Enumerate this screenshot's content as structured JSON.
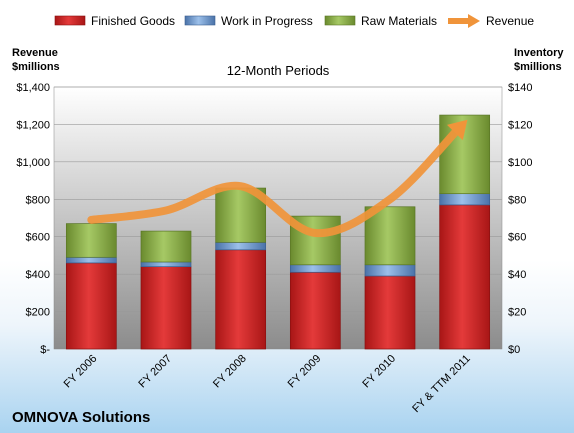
{
  "chart_data": {
    "type": "bar",
    "stacked": true,
    "subtitle": "12-Month Periods",
    "company": "OMNOVA Solutions",
    "categories": [
      "FY 2006",
      "FY 2007",
      "FY 2008",
      "FY 2009",
      "FY 2010",
      "FY & TTM 2011"
    ],
    "series": [
      {
        "name": "Finished Goods",
        "axis": "right",
        "color": "#d92b2b",
        "values": [
          46,
          44,
          53,
          41,
          39,
          77
        ]
      },
      {
        "name": "Work in Progress",
        "axis": "right",
        "color": "#6e9fd6",
        "values": [
          3,
          2.5,
          4,
          4,
          6,
          6
        ]
      },
      {
        "name": "Raw Materials",
        "axis": "right",
        "color": "#8fb64a",
        "values": [
          18,
          16.5,
          29,
          26,
          31,
          42
        ]
      }
    ],
    "line": {
      "name": "Revenue",
      "axis": "left",
      "color": "#f0943a",
      "values": [
        690,
        740,
        870,
        620,
        800,
        1210
      ]
    },
    "left_axis": {
      "title": [
        "Revenue",
        "$millions"
      ],
      "min": 0,
      "max": 1400,
      "step": 200,
      "tick_labels": [
        "$-",
        "$200",
        "$400",
        "$600",
        "$800",
        "$1,000",
        "$1,200",
        "$1,400"
      ]
    },
    "right_axis": {
      "title": [
        "Inventory",
        "$millions"
      ],
      "min": 0,
      "max": 140,
      "step": 20,
      "tick_labels": [
        "$0",
        "$20",
        "$40",
        "$60",
        "$80",
        "$100",
        "$120",
        "$140"
      ]
    },
    "legend_position": "top",
    "grid": true
  }
}
